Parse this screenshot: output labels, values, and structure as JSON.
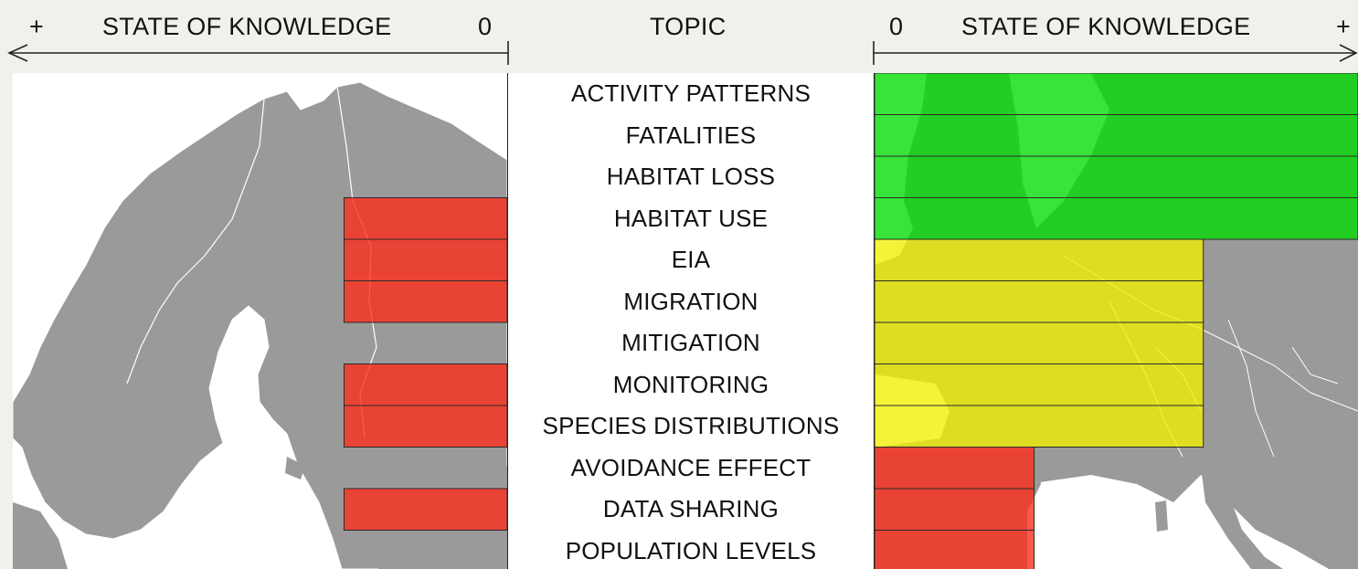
{
  "header": {
    "left": {
      "plus": "+",
      "label": "STATE OF KNOWLEDGE",
      "zero": "0"
    },
    "center": {
      "label": "TOPIC"
    },
    "right": {
      "zero": "0",
      "label": "STATE OF KNOWLEDGE",
      "plus": "+"
    }
  },
  "topics": [
    "ACTIVITY PATTERNS",
    "FATALITIES",
    "HABITAT LOSS",
    "HABITAT USE",
    "EIA",
    "MIGRATION",
    "MITIGATION",
    "MONITORING",
    "SPECIES DISTRIBUTIONS",
    "AVOIDANCE EFFECT",
    "DATA SHARING",
    "POPULATION LEVELS"
  ],
  "knowledge_levels": {
    "left_region": [
      {
        "topic": "HABITAT USE",
        "level": "low"
      },
      {
        "topic": "EIA",
        "level": "low"
      },
      {
        "topic": "MIGRATION",
        "level": "low"
      },
      {
        "topic": "MONITORING",
        "level": "low"
      },
      {
        "topic": "SPECIES DISTRIBUTIONS",
        "level": "low"
      },
      {
        "topic": "DATA SHARING",
        "level": "low"
      }
    ],
    "right_region": [
      {
        "topic": "ACTIVITY PATTERNS",
        "level": "high"
      },
      {
        "topic": "FATALITIES",
        "level": "high"
      },
      {
        "topic": "HABITAT LOSS",
        "level": "high"
      },
      {
        "topic": "HABITAT USE",
        "level": "high"
      },
      {
        "topic": "EIA",
        "level": "medium"
      },
      {
        "topic": "MIGRATION",
        "level": "medium"
      },
      {
        "topic": "MITIGATION",
        "level": "medium"
      },
      {
        "topic": "MONITORING",
        "level": "medium"
      },
      {
        "topic": "SPECIES DISTRIBUTIONS",
        "level": "medium"
      },
      {
        "topic": "AVOIDANCE EFFECT",
        "level": "low"
      },
      {
        "topic": "DATA SHARING",
        "level": "low"
      },
      {
        "topic": "POPULATION LEVELS",
        "level": "low"
      }
    ]
  },
  "colors": {
    "high": "#00dd00",
    "medium": "#f2f000",
    "low": "#ff2a1a",
    "land": "#9a9a9a",
    "sea": "#ffffff"
  }
}
